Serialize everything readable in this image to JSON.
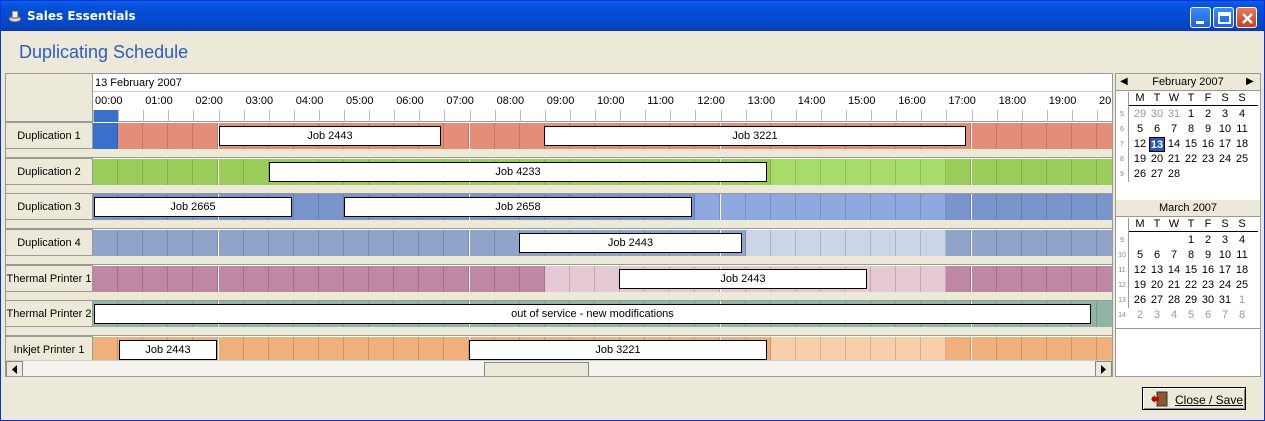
{
  "window": {
    "title": "Sales Essentials"
  },
  "heading": "Duplicating Schedule",
  "schedule": {
    "date": "13 February 2007",
    "hours": [
      "00:00",
      "01:00",
      "02:00",
      "03:00",
      "04:00",
      "05:00",
      "06:00",
      "07:00",
      "08:00",
      "09:00",
      "10:00",
      "11:00",
      "12:00",
      "13:00",
      "14:00",
      "15:00",
      "16:00",
      "17:00",
      "18:00",
      "19:00",
      "20:"
    ],
    "rows": [
      {
        "label": "Duplication 1",
        "color": "#E48E7A",
        "lightColor": "#E48E7A",
        "firstCellColor": "#3A6FD0",
        "jobs": [
          {
            "text": "Job 2443"
          },
          {
            "text": "Job 3221"
          }
        ]
      },
      {
        "label": "Duplication 2",
        "color": "#9ACD5A",
        "lightColor": "#A8DC6A",
        "jobs": [
          {
            "text": "Job 4233"
          }
        ]
      },
      {
        "label": "Duplication 3",
        "color": "#7A95CC",
        "lightColor": "#8FA9E0",
        "jobs": [
          {
            "text": "Job 2665"
          },
          {
            "text": "Job 2658"
          }
        ]
      },
      {
        "label": "Duplication 4",
        "color": "#90A3C8",
        "lightColor": "#CCD5E8",
        "jobs": [
          {
            "text": "Job 2443"
          }
        ]
      },
      {
        "label": "Thermal Printer 1",
        "color": "#BE88A4",
        "lightColor": "#E4C8D4",
        "jobs": [
          {
            "text": "Job 2443"
          }
        ]
      },
      {
        "label": "Thermal Printer 2",
        "color": "#8FB5A5",
        "lightColor": "#8FB5A5",
        "jobs": [
          {
            "text": "out of service - new modifications"
          }
        ]
      },
      {
        "label": "Inkjet Printer 1",
        "color": "#F0B07A",
        "lightColor": "#F8CFA8",
        "jobs": [
          {
            "text": "Job 2443"
          },
          {
            "text": "Job 3221"
          }
        ]
      }
    ]
  },
  "calendars": [
    {
      "month": "February 2007",
      "weekdays": [
        "M",
        "T",
        "W",
        "T",
        "F",
        "S",
        "S"
      ],
      "weeks": [
        {
          "wk": "5",
          "days": [
            {
              "d": "29",
              "dim": true
            },
            {
              "d": "30",
              "dim": true
            },
            {
              "d": "31",
              "dim": true
            },
            {
              "d": "1"
            },
            {
              "d": "2"
            },
            {
              "d": "3"
            },
            {
              "d": "4"
            }
          ]
        },
        {
          "wk": "6",
          "days": [
            {
              "d": "5"
            },
            {
              "d": "6"
            },
            {
              "d": "7"
            },
            {
              "d": "8"
            },
            {
              "d": "9"
            },
            {
              "d": "10"
            },
            {
              "d": "11"
            }
          ]
        },
        {
          "wk": "7",
          "days": [
            {
              "d": "12"
            },
            {
              "d": "13",
              "today": true
            },
            {
              "d": "14"
            },
            {
              "d": "15"
            },
            {
              "d": "16"
            },
            {
              "d": "17"
            },
            {
              "d": "18"
            }
          ]
        },
        {
          "wk": "8",
          "days": [
            {
              "d": "19"
            },
            {
              "d": "20"
            },
            {
              "d": "21"
            },
            {
              "d": "22"
            },
            {
              "d": "23"
            },
            {
              "d": "24"
            },
            {
              "d": "25"
            }
          ]
        },
        {
          "wk": "9",
          "days": [
            {
              "d": "26"
            },
            {
              "d": "27"
            },
            {
              "d": "28"
            }
          ]
        }
      ]
    },
    {
      "month": "March 2007",
      "weekdays": [
        "M",
        "T",
        "W",
        "T",
        "F",
        "S",
        "S"
      ],
      "weeks": [
        {
          "wk": "9",
          "days": [
            {
              "d": ""
            },
            {
              "d": ""
            },
            {
              "d": ""
            },
            {
              "d": "1"
            },
            {
              "d": "2"
            },
            {
              "d": "3"
            },
            {
              "d": "4"
            }
          ]
        },
        {
          "wk": "10",
          "days": [
            {
              "d": "5"
            },
            {
              "d": "6"
            },
            {
              "d": "7"
            },
            {
              "d": "8"
            },
            {
              "d": "9"
            },
            {
              "d": "10"
            },
            {
              "d": "11"
            }
          ]
        },
        {
          "wk": "11",
          "days": [
            {
              "d": "12"
            },
            {
              "d": "13"
            },
            {
              "d": "14"
            },
            {
              "d": "15"
            },
            {
              "d": "16"
            },
            {
              "d": "17"
            },
            {
              "d": "18"
            }
          ]
        },
        {
          "wk": "12",
          "days": [
            {
              "d": "19"
            },
            {
              "d": "20"
            },
            {
              "d": "21"
            },
            {
              "d": "22"
            },
            {
              "d": "23"
            },
            {
              "d": "24"
            },
            {
              "d": "25"
            }
          ]
        },
        {
          "wk": "13",
          "days": [
            {
              "d": "26"
            },
            {
              "d": "27"
            },
            {
              "d": "28"
            },
            {
              "d": "29"
            },
            {
              "d": "30"
            },
            {
              "d": "31"
            },
            {
              "d": "1",
              "dim": true
            }
          ]
        },
        {
          "wk": "14",
          "days": [
            {
              "d": "2",
              "dim": true
            },
            {
              "d": "3",
              "dim": true
            },
            {
              "d": "4",
              "dim": true
            },
            {
              "d": "5",
              "dim": true
            },
            {
              "d": "6",
              "dim": true
            },
            {
              "d": "7",
              "dim": true
            },
            {
              "d": "8",
              "dim": true
            }
          ]
        }
      ]
    }
  ],
  "buttons": {
    "close_save": "Close / Save"
  }
}
